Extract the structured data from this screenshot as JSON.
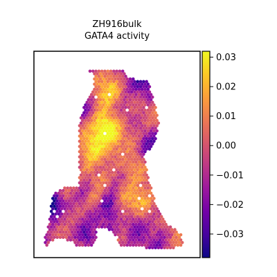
{
  "chart_data": {
    "type": "scatter",
    "title_lines": [
      "ZH916bulk",
      "GATA4 activity"
    ],
    "xlabel": "",
    "ylabel": "",
    "grid": false,
    "axes_ticks": false,
    "colormap": "plasma",
    "colormap_stops": [
      "#0d0887",
      "#46039f",
      "#7201a8",
      "#9c179e",
      "#bd3786",
      "#d8576b",
      "#ed7953",
      "#fb9f3a",
      "#fdca26",
      "#f0f921"
    ],
    "colorbar": {
      "vmin": -0.038,
      "vmax": 0.032,
      "ticks": [
        0.03,
        0.02,
        0.01,
        0.0,
        -0.01,
        -0.02,
        -0.03
      ],
      "tick_labels": [
        "0.03",
        "0.02",
        "0.01",
        "0.00",
        "−0.01",
        "−0.02",
        "−0.03"
      ]
    },
    "tissue_boundary": [
      [
        0.22,
        0.05
      ],
      [
        0.37,
        0.05
      ],
      [
        0.44,
        0.06
      ],
      [
        0.55,
        0.05
      ],
      [
        0.59,
        0.1
      ],
      [
        0.7,
        0.11
      ],
      [
        0.73,
        0.14
      ],
      [
        0.75,
        0.21
      ],
      [
        0.77,
        0.26
      ],
      [
        0.79,
        0.32
      ],
      [
        0.78,
        0.4
      ],
      [
        0.75,
        0.46
      ],
      [
        0.69,
        0.5
      ],
      [
        0.71,
        0.58
      ],
      [
        0.73,
        0.66
      ],
      [
        0.76,
        0.74
      ],
      [
        0.8,
        0.82
      ],
      [
        0.84,
        0.86
      ],
      [
        0.87,
        0.89
      ],
      [
        0.91,
        0.9
      ],
      [
        0.94,
        0.93
      ],
      [
        0.96,
        0.96
      ],
      [
        0.95,
        0.99
      ],
      [
        0.89,
        1.0
      ],
      [
        0.8,
        1.0
      ],
      [
        0.7,
        1.0
      ],
      [
        0.6,
        0.99
      ],
      [
        0.52,
        0.99
      ],
      [
        0.51,
        0.95
      ],
      [
        0.47,
        0.91
      ],
      [
        0.42,
        0.89
      ],
      [
        0.37,
        0.9
      ],
      [
        0.36,
        0.95
      ],
      [
        0.34,
        0.99
      ],
      [
        0.29,
        1.0
      ],
      [
        0.22,
        0.99
      ],
      [
        0.17,
        0.96
      ],
      [
        0.11,
        0.95
      ],
      [
        0.07,
        0.96
      ],
      [
        0.03,
        0.99
      ],
      [
        0.0,
        0.98
      ],
      [
        0.02,
        0.93
      ],
      [
        0.04,
        0.88
      ],
      [
        0.05,
        0.8
      ],
      [
        0.06,
        0.73
      ],
      [
        0.1,
        0.7
      ],
      [
        0.15,
        0.68
      ],
      [
        0.19,
        0.67
      ],
      [
        0.24,
        0.67
      ],
      [
        0.25,
        0.6
      ],
      [
        0.24,
        0.5
      ],
      [
        0.24,
        0.4
      ],
      [
        0.25,
        0.32
      ],
      [
        0.28,
        0.25
      ],
      [
        0.32,
        0.2
      ],
      [
        0.35,
        0.13
      ],
      [
        0.34,
        0.07
      ]
    ],
    "activity_hotspots": [
      {
        "x": 0.42,
        "y": 0.35,
        "r": 0.07,
        "value": 0.028
      },
      {
        "x": 0.52,
        "y": 0.4,
        "r": 0.09,
        "value": 0.022
      },
      {
        "x": 0.45,
        "y": 0.17,
        "r": 0.06,
        "value": 0.018
      },
      {
        "x": 0.32,
        "y": 0.49,
        "r": 0.06,
        "value": 0.02
      },
      {
        "x": 0.42,
        "y": 0.62,
        "r": 0.07,
        "value": 0.016
      },
      {
        "x": 0.6,
        "y": 0.55,
        "r": 0.06,
        "value": 0.014
      },
      {
        "x": 0.7,
        "y": 0.73,
        "r": 0.07,
        "value": 0.019
      },
      {
        "x": 0.58,
        "y": 0.72,
        "r": 0.05,
        "value": 0.01
      },
      {
        "x": 0.15,
        "y": 0.85,
        "r": 0.06,
        "value": 0.008
      },
      {
        "x": 0.36,
        "y": 0.74,
        "r": 0.05,
        "value": 0.012
      },
      {
        "x": 0.68,
        "y": 0.1,
        "r": 0.06,
        "value": -0.018
      },
      {
        "x": 0.74,
        "y": 0.18,
        "r": 0.05,
        "value": -0.014
      },
      {
        "x": 0.72,
        "y": 0.47,
        "r": 0.06,
        "value": -0.028
      },
      {
        "x": 0.58,
        "y": 0.5,
        "r": 0.05,
        "value": -0.012
      },
      {
        "x": 0.45,
        "y": 0.77,
        "r": 0.05,
        "value": -0.026
      },
      {
        "x": 0.28,
        "y": 0.7,
        "r": 0.05,
        "value": -0.02
      },
      {
        "x": 0.06,
        "y": 0.78,
        "r": 0.05,
        "value": -0.028
      },
      {
        "x": 0.2,
        "y": 0.92,
        "r": 0.06,
        "value": -0.016
      },
      {
        "x": 0.3,
        "y": 0.94,
        "r": 0.04,
        "value": -0.018
      },
      {
        "x": 0.63,
        "y": 0.88,
        "r": 0.05,
        "value": -0.022
      },
      {
        "x": 0.8,
        "y": 0.94,
        "r": 0.04,
        "value": -0.008
      },
      {
        "x": 0.3,
        "y": 0.28,
        "r": 0.05,
        "value": -0.01
      },
      {
        "x": 0.52,
        "y": 0.27,
        "r": 0.05,
        "value": -0.006
      }
    ]
  }
}
